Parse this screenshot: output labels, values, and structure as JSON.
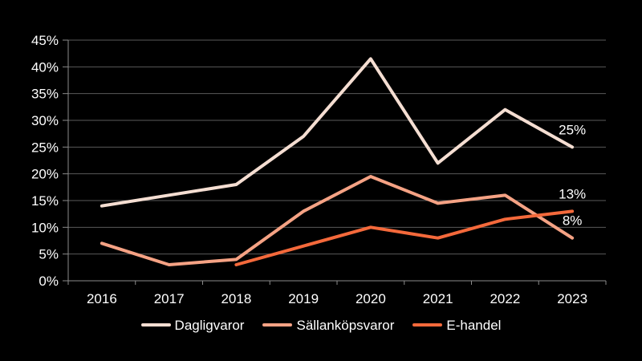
{
  "chart_data": {
    "type": "line",
    "title": "",
    "xlabel": "",
    "ylabel": "",
    "categories": [
      "2016",
      "2017",
      "2018",
      "2019",
      "2020",
      "2021",
      "2022",
      "2023"
    ],
    "series": [
      {
        "name": "Dagligvaror",
        "color": "#f5ded2",
        "values": [
          14,
          16,
          18,
          27,
          41.5,
          22,
          32,
          25
        ],
        "end_label": "25%"
      },
      {
        "name": "Sällanköpsvaror",
        "color": "#f5a284",
        "values": [
          7,
          3,
          4,
          13,
          19.5,
          14.5,
          16,
          8
        ],
        "end_label": "8%"
      },
      {
        "name": "E-handel",
        "color": "#f4693b",
        "values": [
          null,
          null,
          3,
          6.5,
          10,
          8,
          11.5,
          13
        ],
        "end_label": "13%"
      }
    ],
    "y_tick_labels": [
      "0%",
      "5%",
      "10%",
      "15%",
      "20%",
      "25%",
      "30%",
      "35%",
      "40%",
      "45%"
    ],
    "ylim": [
      0,
      45
    ],
    "y_step": 5,
    "grid": true,
    "legend_position": "bottom"
  },
  "colors": {
    "background": "#000000",
    "gridline": "#5a5a5a",
    "axis": "#8c8c8c",
    "text": "#ffffff"
  }
}
